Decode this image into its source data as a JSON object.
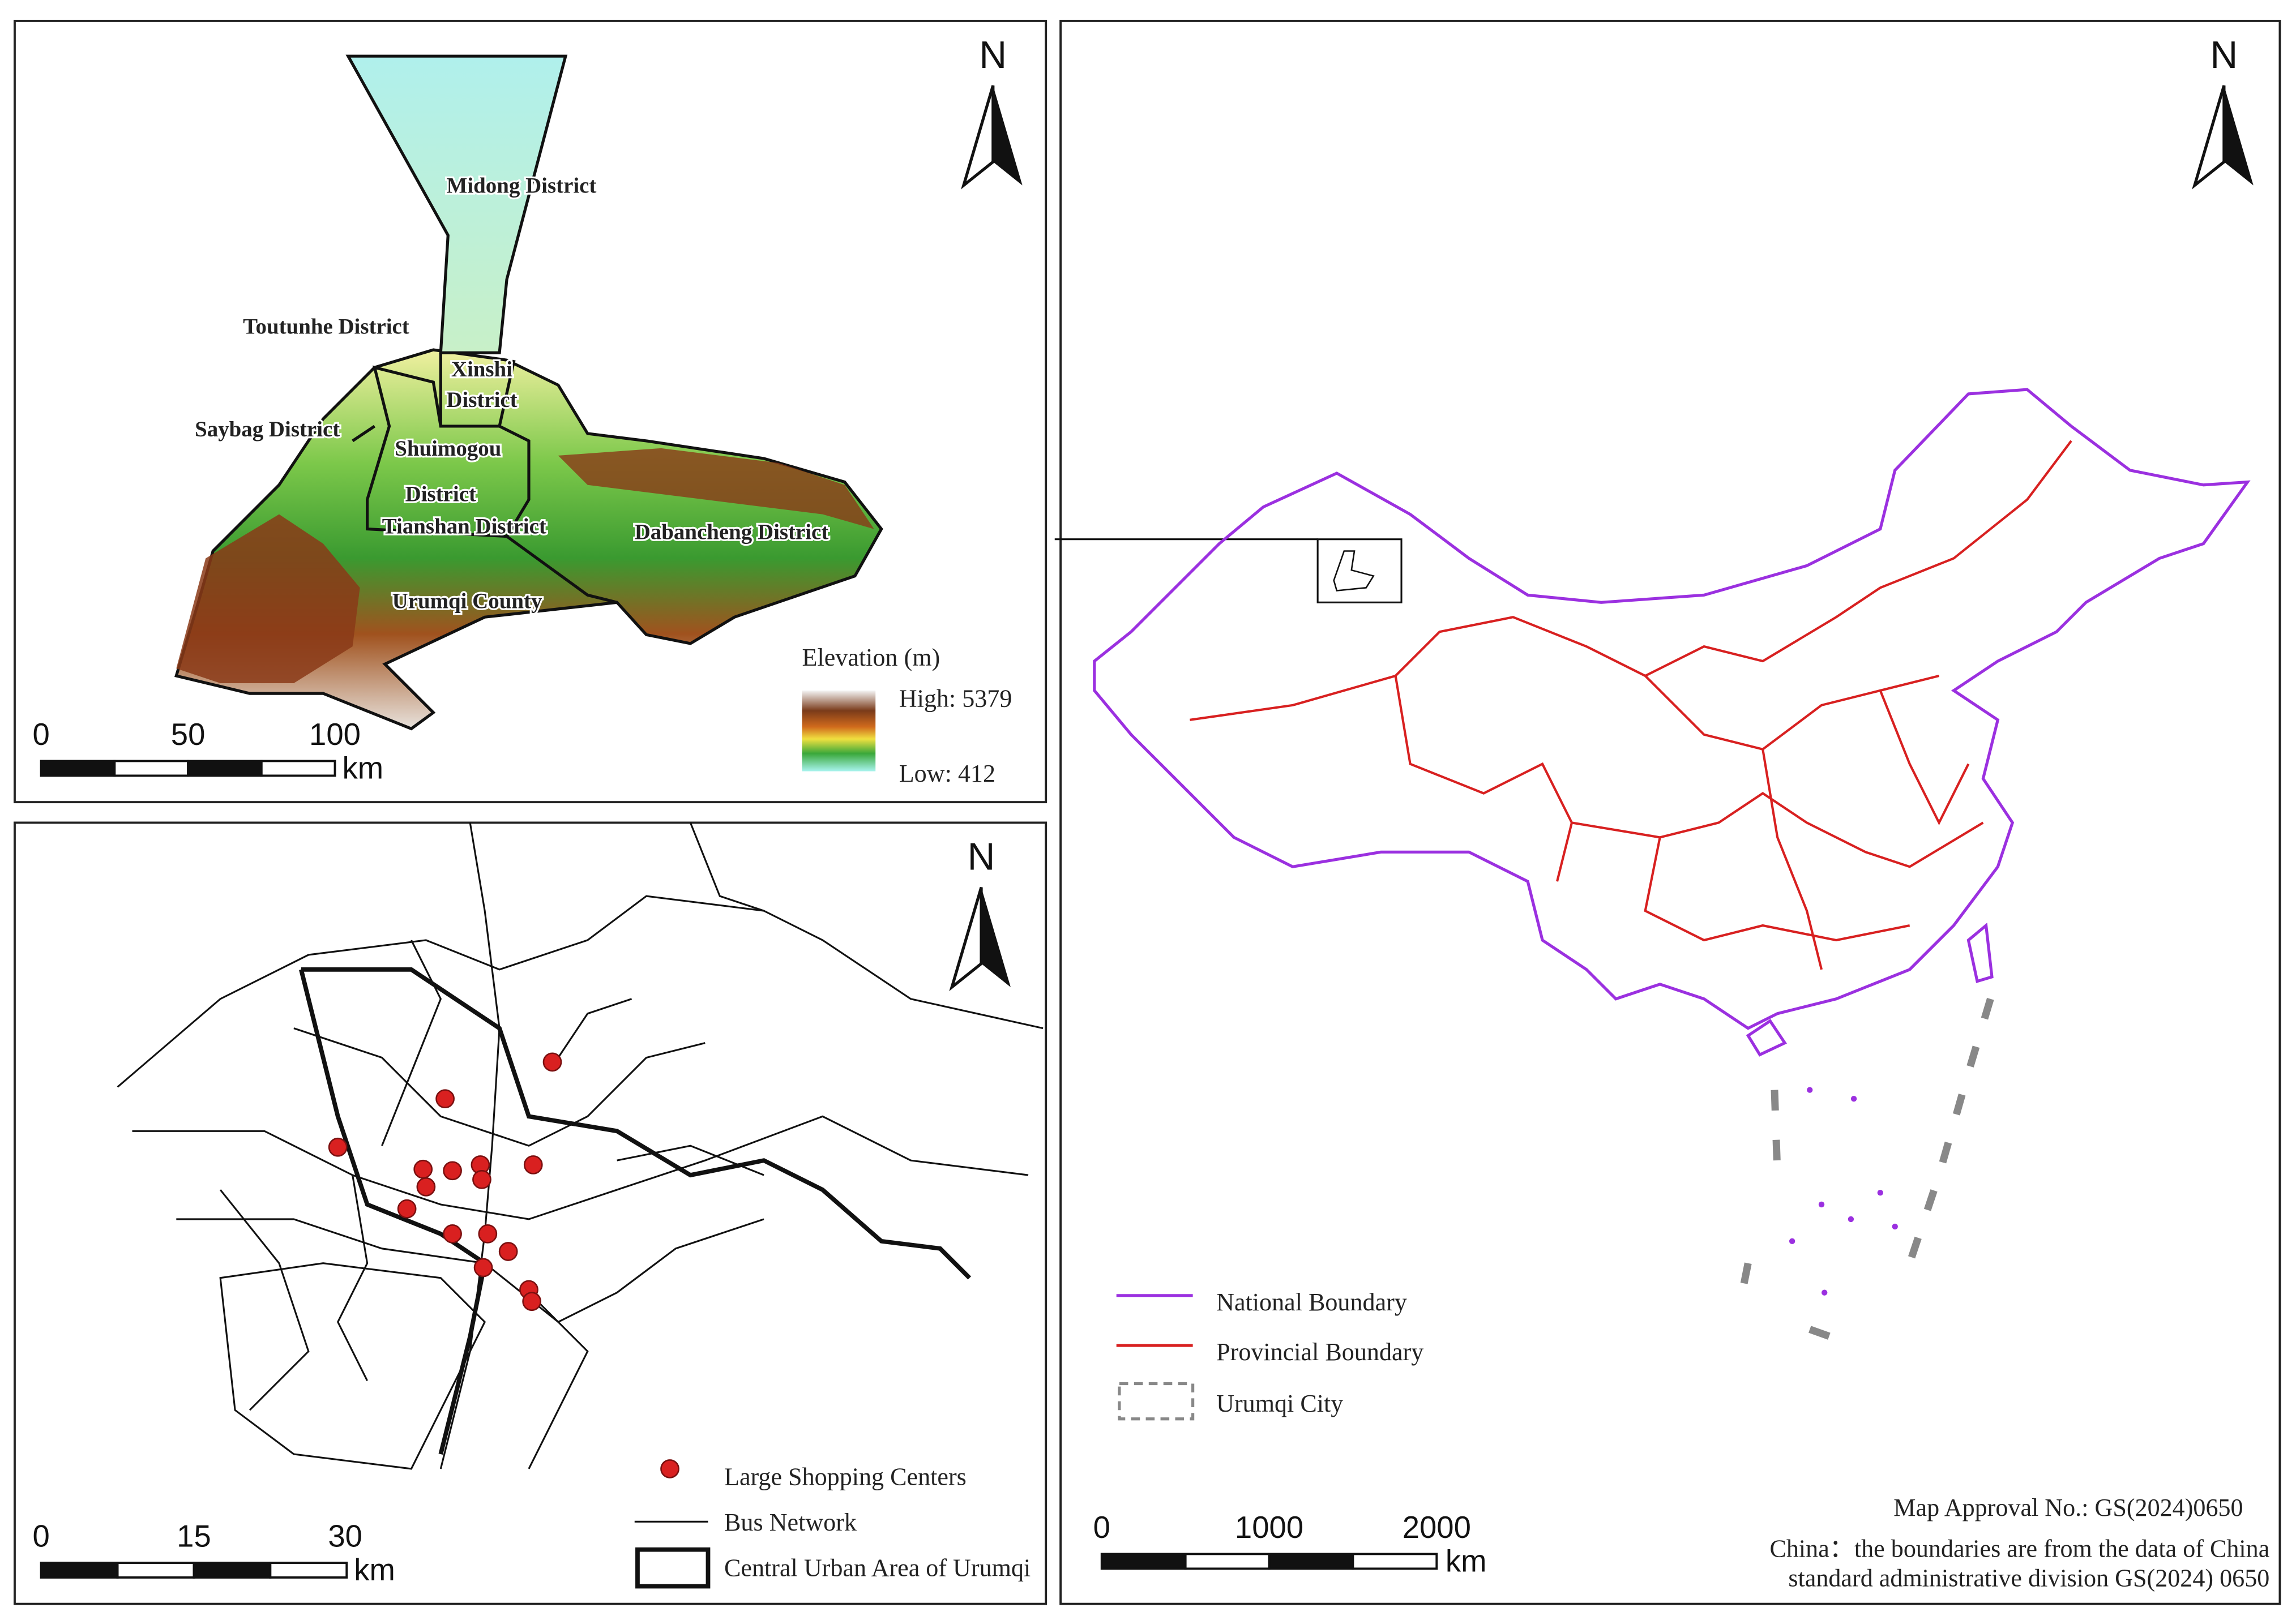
{
  "elevation_map": {
    "north": "N",
    "districts": [
      {
        "lines": [
          "Midong District"
        ]
      },
      {
        "lines": [
          "Toutunhe District"
        ]
      },
      {
        "lines": [
          "Xinshi",
          "District"
        ]
      },
      {
        "lines": [
          "Saybag District"
        ]
      },
      {
        "lines": [
          "Shuimogou",
          "District"
        ]
      },
      {
        "lines": [
          "Tianshan District"
        ]
      },
      {
        "lines": [
          "Dabancheng District"
        ]
      },
      {
        "lines": [
          "Urumqi County"
        ]
      }
    ],
    "legend_title": "Elevation (m)",
    "high": "High:  5379",
    "low": "Low:  412",
    "scale": [
      "0",
      "50",
      "100"
    ],
    "scale_unit": "km"
  },
  "bus_map": {
    "north": "N",
    "legend": [
      "Large Shopping Centers",
      "Bus Network",
      "Central Urban Area of Urumqi"
    ],
    "scale": [
      "0",
      "15",
      "30"
    ],
    "scale_unit": "km"
  },
  "china_map": {
    "north": "N",
    "legend": [
      "National Boundary",
      "Provincial Boundary",
      "Urumqi City"
    ],
    "scale": [
      "0",
      "1000",
      "2000"
    ],
    "scale_unit": "km",
    "approval": "Map Approval No.: GS(2024)0650",
    "source": [
      "China：the boundaries are from the data of China",
      "standard administrative division GS(2024) 0650"
    ]
  }
}
